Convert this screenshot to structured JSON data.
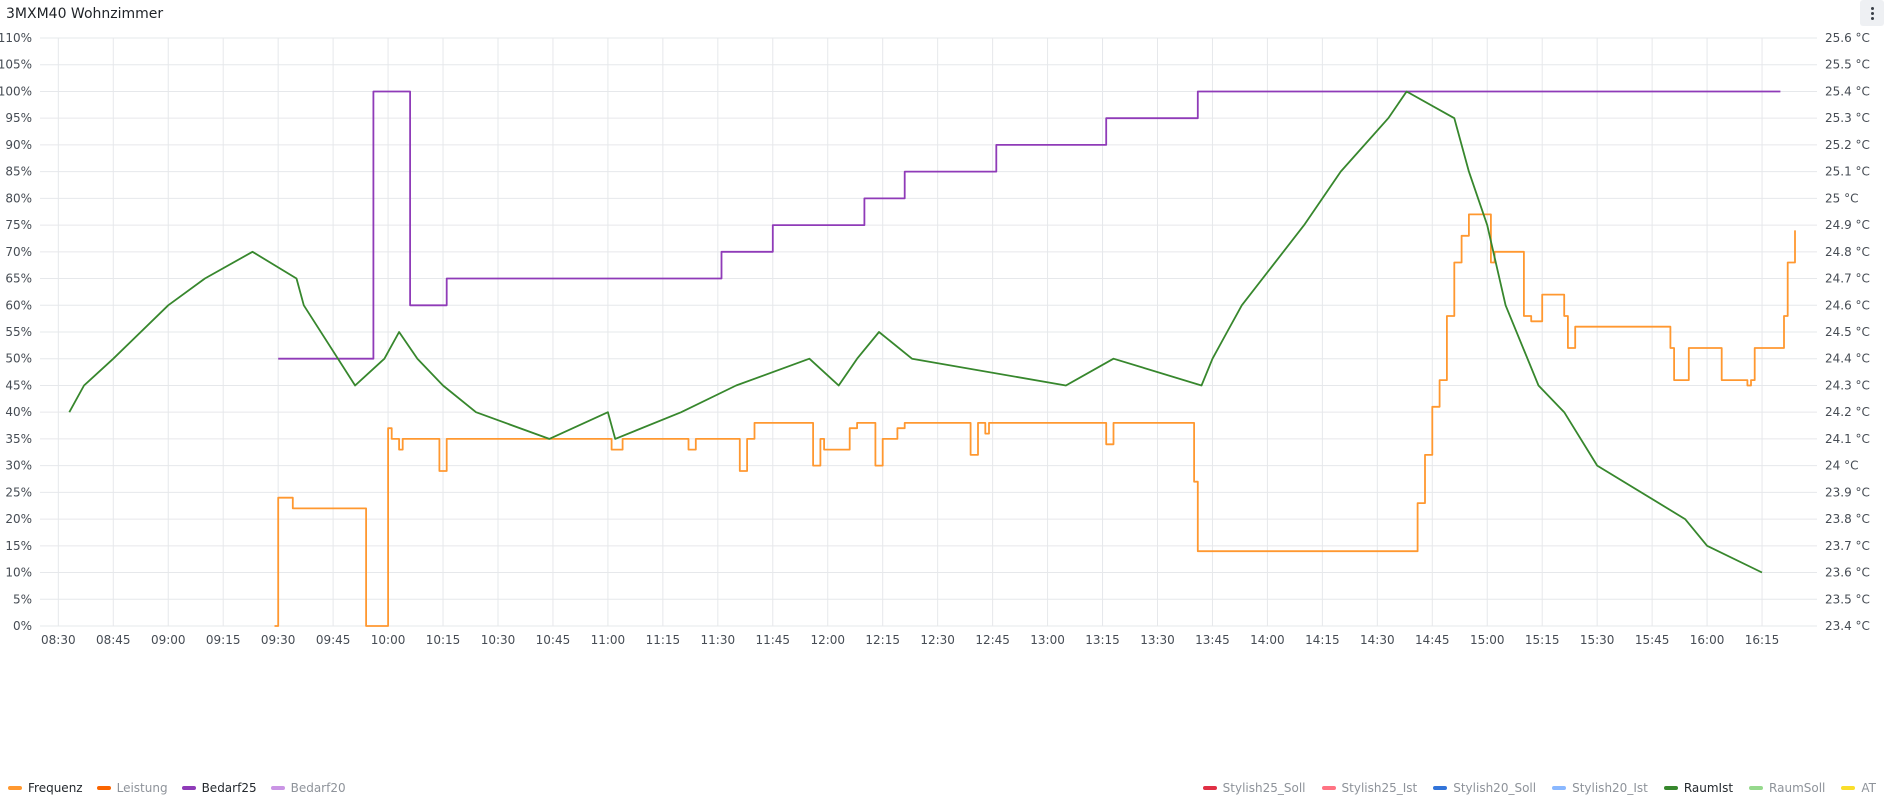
{
  "panel": {
    "title": "3MXM40 Wohnzimmer",
    "menu_icon": "kebab-vertical-icon"
  },
  "chart_data": {
    "type": "line",
    "x_axis": {
      "type": "time",
      "range": [
        "08:25",
        "16:30"
      ],
      "ticks": [
        "08:30",
        "08:45",
        "09:00",
        "09:15",
        "09:30",
        "09:45",
        "10:00",
        "10:15",
        "10:30",
        "10:45",
        "11:00",
        "11:15",
        "11:30",
        "11:45",
        "12:00",
        "12:15",
        "12:30",
        "12:45",
        "13:00",
        "13:15",
        "13:30",
        "13:45",
        "14:00",
        "14:15",
        "14:30",
        "14:45",
        "15:00",
        "15:15",
        "15:30",
        "15:45",
        "16:00",
        "16:15"
      ]
    },
    "y_left": {
      "range": [
        0,
        110
      ],
      "ticks": [
        "0%",
        "5%",
        "10%",
        "15%",
        "20%",
        "25%",
        "30%",
        "35%",
        "40%",
        "45%",
        "50%",
        "55%",
        "60%",
        "65%",
        "70%",
        "75%",
        "80%",
        "85%",
        "90%",
        "95%",
        "100%",
        "105%",
        "110%"
      ]
    },
    "y_right": {
      "range": [
        23.4,
        25.6
      ],
      "ticks": [
        "23.4 °C",
        "23.5 °C",
        "23.6 °C",
        "23.7 °C",
        "23.8 °C",
        "23.9 °C",
        "24 °C",
        "24.1 °C",
        "24.2 °C",
        "24.3 °C",
        "24.4 °C",
        "24.5 °C",
        "24.6 °C",
        "24.7 °C",
        "24.8 °C",
        "24.9 °C",
        "25 °C",
        "25.1 °C",
        "25.2 °C",
        "25.3 °C",
        "25.4 °C",
        "25.5 °C",
        "25.6 °C"
      ]
    },
    "grid": true,
    "legend_position": "bottom",
    "legend_left": [
      {
        "name": "Frequenz",
        "color": "#ff9830",
        "dim": false
      },
      {
        "name": "Leistung",
        "color": "#fa6400",
        "dim": true
      },
      {
        "name": "Bedarf25",
        "color": "#8f3bb8",
        "dim": false
      },
      {
        "name": "Bedarf20",
        "color": "#ca95e5",
        "dim": true
      }
    ],
    "legend_right": [
      {
        "name": "Stylish25_Soll",
        "color": "#e02f44",
        "dim": true
      },
      {
        "name": "Stylish25_Ist",
        "color": "#ff7383",
        "dim": true
      },
      {
        "name": "Stylish20_Soll",
        "color": "#3274d9",
        "dim": true
      },
      {
        "name": "Stylish20_Ist",
        "color": "#8ab8ff",
        "dim": true
      },
      {
        "name": "RaumIst",
        "color": "#37872d",
        "dim": false
      },
      {
        "name": "RaumSoll",
        "color": "#96d98d",
        "dim": true
      },
      {
        "name": "AT",
        "color": "#fade2a",
        "dim": true
      }
    ],
    "series": [
      {
        "name": "Frequenz",
        "color": "#ff9830",
        "axis": "left",
        "step": true,
        "points": [
          [
            "09:29",
            0
          ],
          [
            "09:30",
            24
          ],
          [
            "09:34",
            22
          ],
          [
            "09:54",
            0
          ],
          [
            "10:00",
            37
          ],
          [
            "10:01",
            35
          ],
          [
            "10:03",
            33
          ],
          [
            "10:04",
            35
          ],
          [
            "10:14",
            29
          ],
          [
            "10:16",
            35
          ],
          [
            "11:01",
            33
          ],
          [
            "11:04",
            35
          ],
          [
            "11:22",
            33
          ],
          [
            "11:24",
            35
          ],
          [
            "11:36",
            29
          ],
          [
            "11:38",
            35
          ],
          [
            "11:40",
            38
          ],
          [
            "11:56",
            30
          ],
          [
            "11:58",
            35
          ],
          [
            "11:59",
            33
          ],
          [
            "12:06",
            37
          ],
          [
            "12:08",
            38
          ],
          [
            "12:13",
            30
          ],
          [
            "12:15",
            35
          ],
          [
            "12:19",
            37
          ],
          [
            "12:21",
            38
          ],
          [
            "12:39",
            32
          ],
          [
            "12:41",
            38
          ],
          [
            "12:43",
            36
          ],
          [
            "12:44",
            38
          ],
          [
            "13:16",
            34
          ],
          [
            "13:18",
            38
          ],
          [
            "13:40",
            27
          ],
          [
            "13:41",
            14
          ],
          [
            "14:41",
            23
          ],
          [
            "14:43",
            32
          ],
          [
            "14:45",
            41
          ],
          [
            "14:47",
            46
          ],
          [
            "14:49",
            58
          ],
          [
            "14:51",
            68
          ],
          [
            "14:53",
            73
          ],
          [
            "14:55",
            77
          ],
          [
            "15:01",
            68
          ],
          [
            "15:02",
            70
          ],
          [
            "15:10",
            58
          ],
          [
            "15:12",
            57
          ],
          [
            "15:15",
            62
          ],
          [
            "15:21",
            58
          ],
          [
            "15:22",
            52
          ],
          [
            "15:24",
            56
          ],
          [
            "15:50",
            52
          ],
          [
            "15:51",
            46
          ],
          [
            "15:55",
            52
          ],
          [
            "16:04",
            46
          ],
          [
            "16:11",
            45
          ],
          [
            "16:12",
            46
          ],
          [
            "16:13",
            52
          ],
          [
            "16:21",
            58
          ],
          [
            "16:22",
            68
          ],
          [
            "16:24",
            74
          ]
        ]
      },
      {
        "name": "Bedarf25",
        "color": "#8f3bb8",
        "axis": "left",
        "step": true,
        "points": [
          [
            "09:30",
            50
          ],
          [
            "09:56",
            100
          ],
          [
            "10:06",
            60
          ],
          [
            "10:16",
            65
          ],
          [
            "11:31",
            70
          ],
          [
            "11:45",
            75
          ],
          [
            "12:10",
            80
          ],
          [
            "12:21",
            85
          ],
          [
            "12:46",
            90
          ],
          [
            "13:16",
            95
          ],
          [
            "13:41",
            100
          ],
          [
            "16:20",
            100
          ]
        ]
      },
      {
        "name": "RaumIst",
        "color": "#37872d",
        "axis": "right",
        "step": false,
        "points": [
          [
            "08:33",
            24.2
          ],
          [
            "08:37",
            24.3
          ],
          [
            "08:45",
            24.4
          ],
          [
            "09:00",
            24.6
          ],
          [
            "09:10",
            24.7
          ],
          [
            "09:23",
            24.8
          ],
          [
            "09:35",
            24.7
          ],
          [
            "09:37",
            24.6
          ],
          [
            "09:51",
            24.3
          ],
          [
            "09:59",
            24.4
          ],
          [
            "10:03",
            24.5
          ],
          [
            "10:08",
            24.4
          ],
          [
            "10:15",
            24.3
          ],
          [
            "10:24",
            24.2
          ],
          [
            "10:44",
            24.1
          ],
          [
            "11:00",
            24.2
          ],
          [
            "11:02",
            24.1
          ],
          [
            "11:20",
            24.2
          ],
          [
            "11:35",
            24.3
          ],
          [
            "11:55",
            24.4
          ],
          [
            "12:03",
            24.3
          ],
          [
            "12:08",
            24.4
          ],
          [
            "12:14",
            24.5
          ],
          [
            "12:23",
            24.4
          ],
          [
            "13:05",
            24.3
          ],
          [
            "13:18",
            24.4
          ],
          [
            "13:42",
            24.3
          ],
          [
            "13:45",
            24.4
          ],
          [
            "13:49",
            24.5
          ],
          [
            "13:53",
            24.6
          ],
          [
            "14:10",
            24.9
          ],
          [
            "14:20",
            25.1
          ],
          [
            "14:33",
            25.3
          ],
          [
            "14:38",
            25.4
          ],
          [
            "14:51",
            25.3
          ],
          [
            "14:55",
            25.1
          ],
          [
            "15:00",
            24.9
          ],
          [
            "15:05",
            24.6
          ],
          [
            "15:14",
            24.3
          ],
          [
            "15:21",
            24.2
          ],
          [
            "15:30",
            24.0
          ],
          [
            "15:54",
            23.8
          ],
          [
            "16:00",
            23.7
          ],
          [
            "16:15",
            23.6
          ]
        ]
      }
    ]
  }
}
